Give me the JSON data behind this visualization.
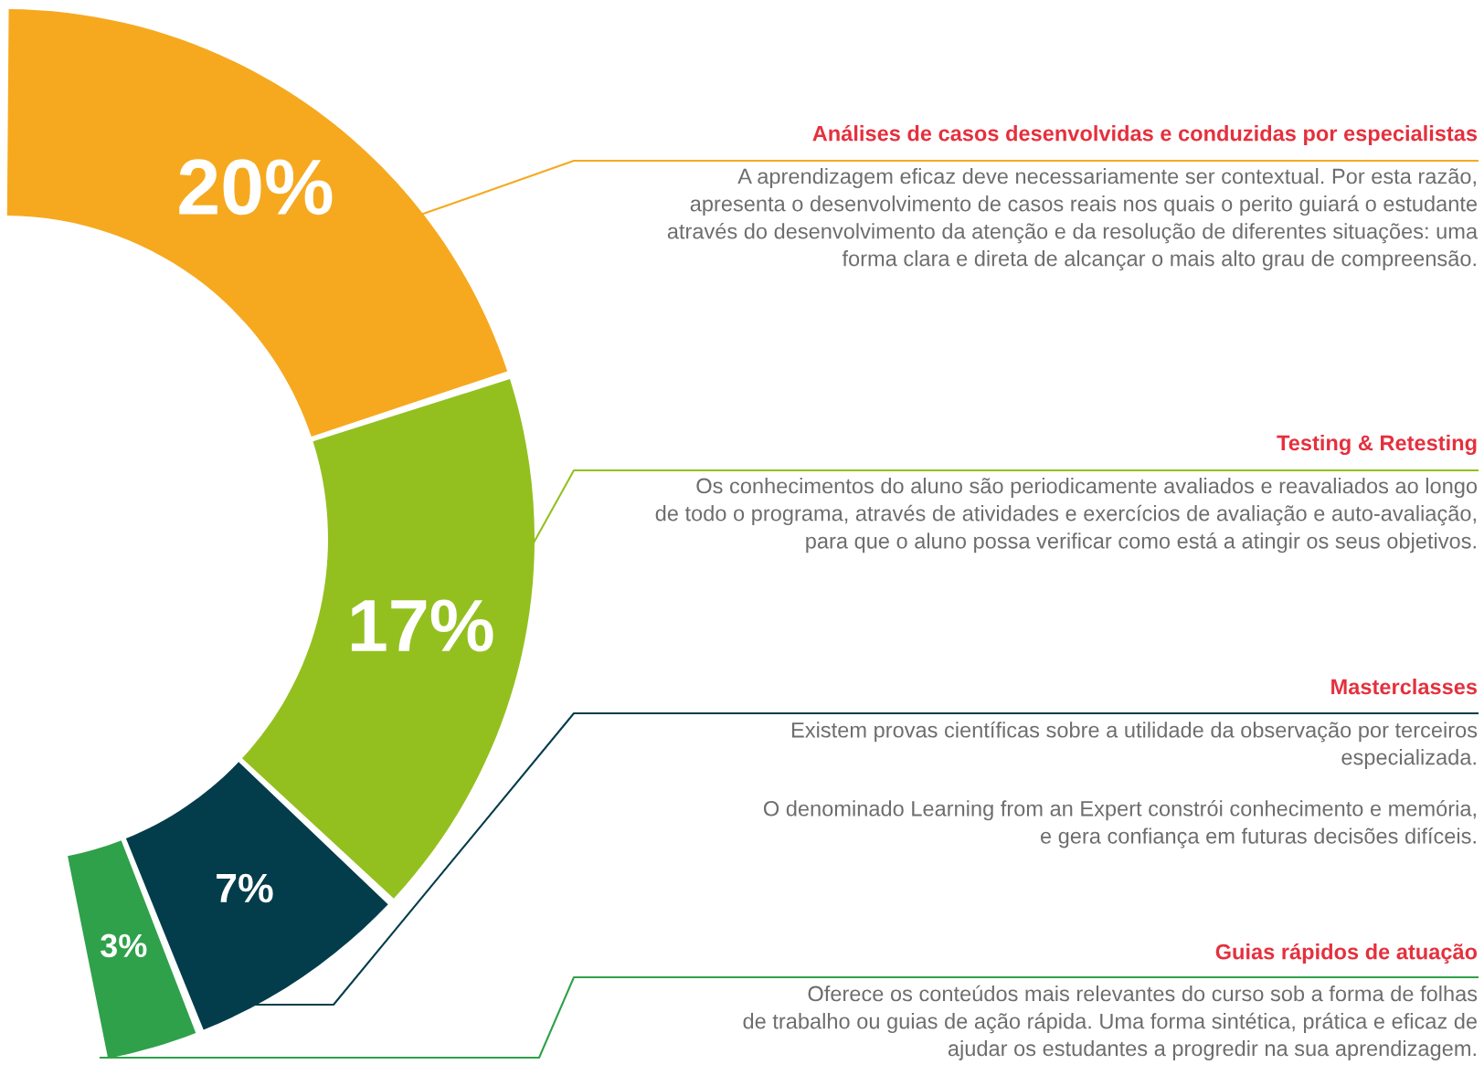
{
  "chart_data": {
    "type": "donut",
    "categories": [
      "Análises de casos desenvolvidas e conduzidas por especialistas",
      "Testing & Retesting",
      "Masterclasses",
      "Guias rápidos de atuação"
    ],
    "values": [
      20,
      17,
      7,
      3
    ],
    "value_labels": [
      "20%",
      "17%",
      "7%",
      "3%"
    ],
    "colors": [
      "#f6a91f",
      "#93c01f",
      "#033d4b",
      "#2fa14a"
    ],
    "annotations": [
      "A aprendizagem eficaz deve necessariamente ser contextual. Por esta razão,\napresenta o desenvolvimento de casos reais nos quais o perito guiará o estudante\natravés do desenvolvimento da atenção e da resolução de diferentes situações: uma\nforma clara e direta de alcançar o mais alto grau de compreensão.",
      "Os conhecimentos do aluno são periodicamente avaliados e reavaliados ao longo\nde todo o programa, através de atividades e exercícios de avaliação e auto-avaliação,\npara que o aluno possa verificar como está a atingir os seus objetivos.",
      "Existem provas científicas sobre a utilidade da observação por terceiros\nespecializada.",
      "O denominado Learning from an Expert constrói conhecimento e memória,\ne gera confiança em futuras decisões difíceis.",
      "Oferece os conteúdos mais relevantes do curso sob a forma de folhas\nde trabalho ou guias de ação rápida. Uma forma sintética, prática e eficaz de\najudar os estudantes a progredir na sua aprendizagem."
    ]
  }
}
